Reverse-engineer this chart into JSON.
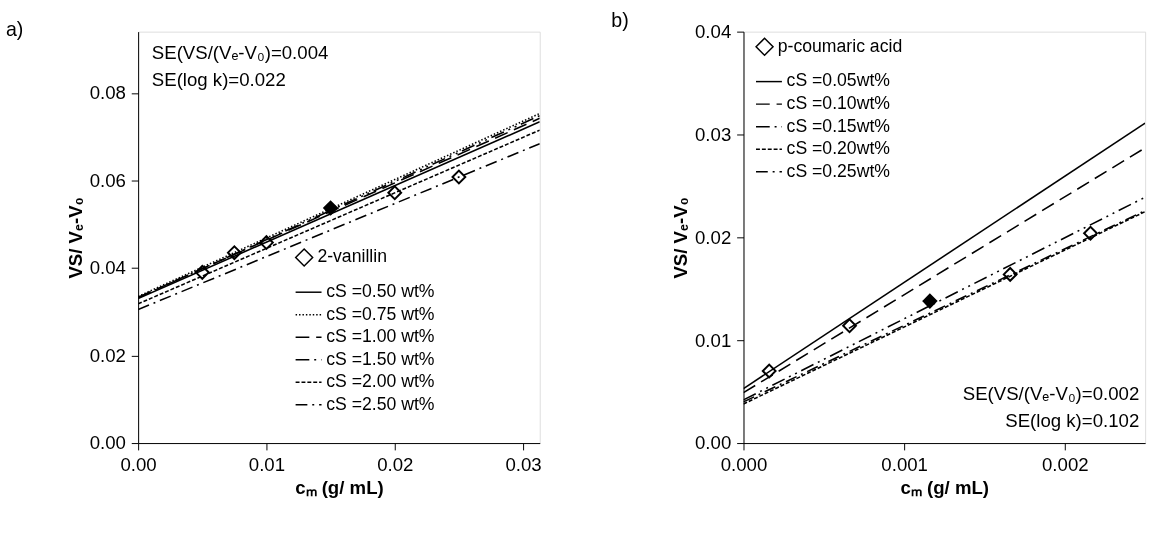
{
  "chart_data": [
    {
      "type": "line",
      "title": "a)",
      "xlabel": "cₘ (g/ mL)",
      "ylabel": "VS/ Vₑ-V₀",
      "xlim": [
        0,
        0.0313
      ],
      "ylim": [
        0,
        0.094
      ],
      "xticks": [
        {
          "value": 0,
          "label": "0.00"
        },
        {
          "value": 0.01,
          "label": "0.01"
        },
        {
          "value": 0.02,
          "label": "0.02"
        },
        {
          "value": 0.03,
          "label": "0.03"
        }
      ],
      "yticks": [
        {
          "value": 0,
          "label": "0.00"
        },
        {
          "value": 0.02,
          "label": "0.02"
        },
        {
          "value": 0.04,
          "label": "0.04"
        },
        {
          "value": 0.06,
          "label": "0.06"
        },
        {
          "value": 0.08,
          "label": "0.08"
        }
      ],
      "grid": false,
      "legend": "bottom right",
      "annotations": [
        "SE(VS/(Vₑ-V₀)=0.004",
        "SE(log k)=0.022"
      ],
      "series": [
        {
          "name": "2-vanillin",
          "type": "scatter",
          "marker": "diamond",
          "color": "#000000",
          "x": [
            0.005,
            0.0075,
            0.01,
            0.015,
            0.02,
            0.025
          ],
          "values": [
            0.039,
            0.0435,
            0.0458,
            0.0537,
            0.0572,
            0.0608
          ],
          "colors": [
            "#ffffff",
            "#ffffff",
            "#ffffff",
            "#000000",
            "#ffffff",
            "#ffffff"
          ]
        },
        {
          "name": "cS =0.50 wt%",
          "type": "line",
          "line_style": "solid",
          "color": "#000000",
          "x": [
            0,
            0.0313
          ],
          "values": [
            0.033,
            0.0734
          ]
        },
        {
          "name": "cS =0.75 wt%",
          "type": "line",
          "line_style": "dotted",
          "color": "#000000",
          "x": [
            0,
            0.0313
          ],
          "values": [
            0.0335,
            0.0753
          ]
        },
        {
          "name": "cS =1.00 wt%",
          "type": "line",
          "line_style": "longdash",
          "color": "#000000",
          "x": [
            0,
            0.0313
          ],
          "values": [
            0.0333,
            0.0742
          ]
        },
        {
          "name": "cS =1.50 wt%",
          "type": "line",
          "line_style": "dashdotdot",
          "color": "#000000",
          "x": [
            0,
            0.0313
          ],
          "values": [
            0.0332,
            0.0748
          ]
        },
        {
          "name": "cS =2.00 wt%",
          "type": "line",
          "line_style": "dashed",
          "color": "#000000",
          "x": [
            0,
            0.0313
          ],
          "values": [
            0.0318,
            0.0715
          ]
        },
        {
          "name": "cS =2.50 wt%",
          "type": "line",
          "line_style": "dashdot",
          "color": "#000000",
          "x": [
            0,
            0.0313
          ],
          "values": [
            0.0305,
            0.0684
          ]
        }
      ]
    },
    {
      "type": "line",
      "title": "b)",
      "xlabel": "cₘ (g/ mL)",
      "ylabel": "VS/ Vₑ-V₀",
      "xlim": [
        0,
        0.0025
      ],
      "ylim": [
        0,
        0.04
      ],
      "xticks": [
        {
          "value": 0,
          "label": "0.000"
        },
        {
          "value": 0.001,
          "label": "0.001"
        },
        {
          "value": 0.002,
          "label": "0.002"
        }
      ],
      "yticks": [
        {
          "value": 0,
          "label": "0.00"
        },
        {
          "value": 0.01,
          "label": "0.01"
        },
        {
          "value": 0.02,
          "label": "0.02"
        },
        {
          "value": 0.03,
          "label": "0.03"
        },
        {
          "value": 0.04,
          "label": "0.04"
        }
      ],
      "grid": false,
      "legend": "top left",
      "annotations": [
        "SE(VS/(Vₑ-V₀)=0.002",
        "SE(log k)=0.102"
      ],
      "series": [
        {
          "name": "p-coumaric acid",
          "type": "scatter",
          "marker": "diamond",
          "color": "#000000",
          "x": [
            0.00016,
            0.00066,
            0.00116,
            0.00166,
            0.00216
          ],
          "values": [
            0.007,
            0.0114,
            0.0138,
            0.0164,
            0.0204
          ],
          "colors": [
            "#ffffff",
            "#ffffff",
            "#000000",
            "#ffffff",
            "#ffffff"
          ]
        },
        {
          "name": "cS =0.05wt%",
          "type": "line",
          "line_style": "solid",
          "color": "#000000",
          "x": [
            0,
            0.0025
          ],
          "values": [
            0.0053,
            0.0311
          ]
        },
        {
          "name": "cS =0.10wt%",
          "type": "line",
          "line_style": "longdash",
          "color": "#000000",
          "x": [
            0,
            0.0025
          ],
          "values": [
            0.0049,
            0.0287
          ]
        },
        {
          "name": "cS =0.15wt%",
          "type": "line",
          "line_style": "dashdotdot",
          "color": "#000000",
          "x": [
            0,
            0.0025
          ],
          "values": [
            0.0042,
            0.0239
          ]
        },
        {
          "name": "cS =0.20wt%",
          "type": "line",
          "line_style": "dashed",
          "color": "#000000",
          "x": [
            0,
            0.0025
          ],
          "values": [
            0.0038,
            0.0225
          ]
        },
        {
          "name": "cS =0.25wt%",
          "type": "line",
          "line_style": "dashdot",
          "color": "#000000",
          "x": [
            0,
            0.0025
          ],
          "values": [
            0.004,
            0.0226
          ]
        }
      ]
    }
  ]
}
